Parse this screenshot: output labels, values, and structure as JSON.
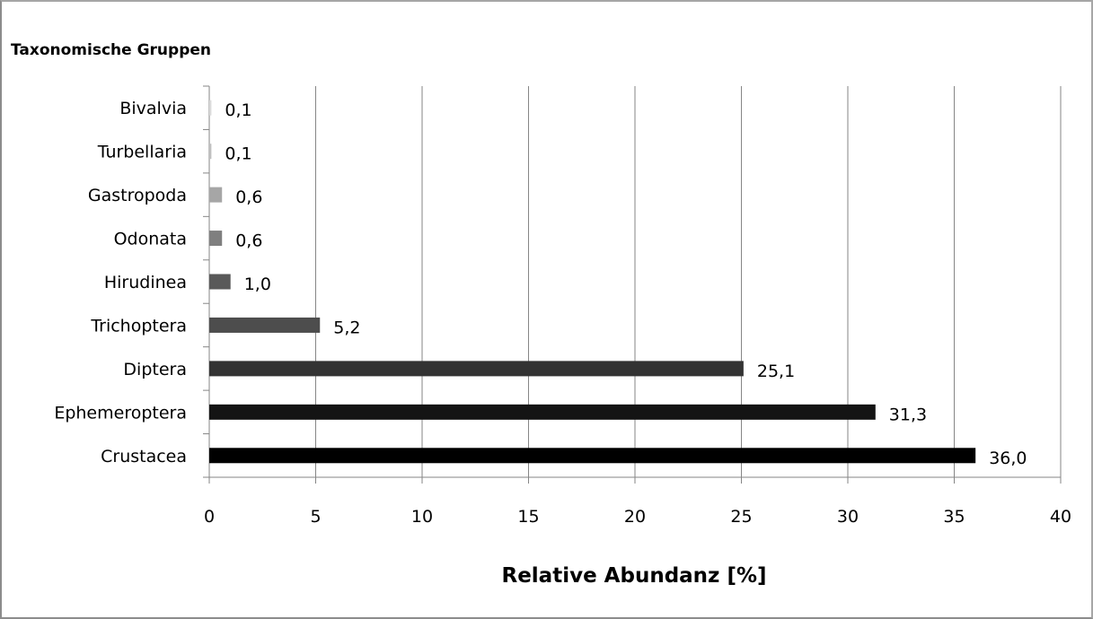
{
  "chart_data": {
    "type": "bar",
    "orientation": "horizontal",
    "title": "",
    "ylabel": "Taxonomische Gruppen",
    "xlabel": "Relative Abundanz [%]",
    "xlim": [
      0,
      40
    ],
    "xticks": [
      "0",
      "5",
      "10",
      "15",
      "20",
      "25",
      "30",
      "35",
      "40"
    ],
    "grid": "vertical gridlines",
    "legend": "none",
    "categories": [
      "Crustacea",
      "Ephemeroptera",
      "Diptera",
      "Trichoptera",
      "Hirudinea",
      "Odonata",
      "Gastropoda",
      "Turbellaria",
      "Bivalvia"
    ],
    "values": [
      36.0,
      31.3,
      25.1,
      5.2,
      1.0,
      0.6,
      0.6,
      0.1,
      0.1
    ],
    "value_labels": [
      "36,0",
      "31,3",
      "25,1",
      "5,2",
      "1,0",
      "0,6",
      "0,6",
      "0,1",
      "0,1"
    ],
    "bar_colors": [
      "#000000",
      "#141414",
      "#333333",
      "#4d4d4d",
      "#595959",
      "#7f7f7f",
      "#a6a6a6",
      "#bfbfbf",
      "#d9d9d9"
    ]
  }
}
